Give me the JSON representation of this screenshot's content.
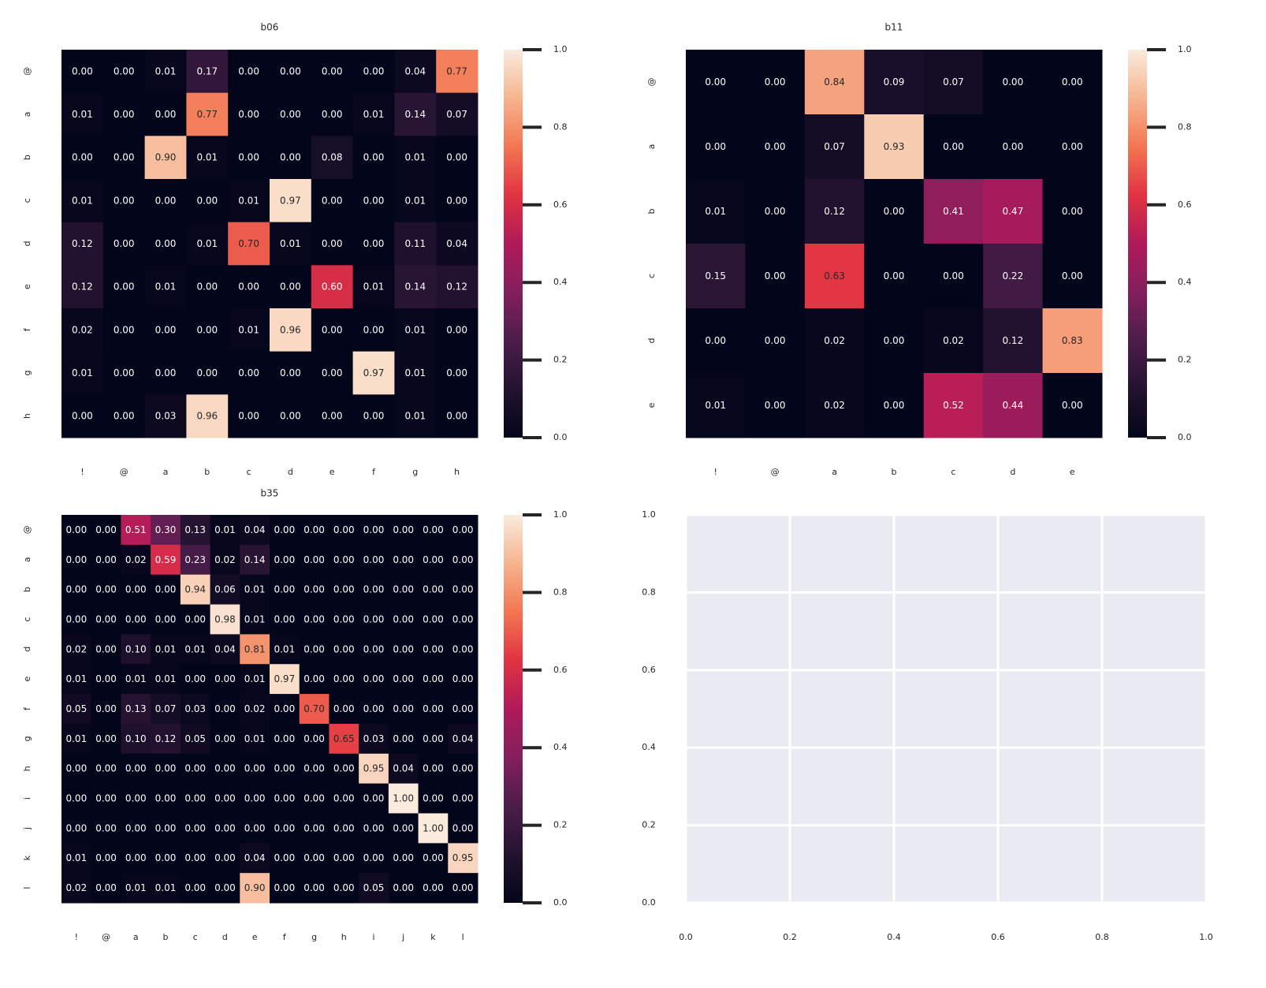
{
  "chart_data": [
    {
      "type": "heatmap",
      "title": "b06",
      "x_categories": [
        "!",
        "@",
        "a",
        "b",
        "c",
        "d",
        "e",
        "f",
        "g",
        "h"
      ],
      "y_categories": [
        "@",
        "a",
        "b",
        "c",
        "d",
        "e",
        "f",
        "g",
        "h"
      ],
      "values": [
        [
          0.0,
          0.0,
          0.01,
          0.17,
          0.0,
          0.0,
          0.0,
          0.0,
          0.04,
          0.77
        ],
        [
          0.01,
          0.0,
          0.0,
          0.77,
          0.0,
          0.0,
          0.0,
          0.01,
          0.14,
          0.07
        ],
        [
          0.0,
          0.0,
          0.9,
          0.01,
          0.0,
          0.0,
          0.08,
          0.0,
          0.01,
          0.0
        ],
        [
          0.01,
          0.0,
          0.0,
          0.0,
          0.01,
          0.97,
          0.0,
          0.0,
          0.01,
          0.0
        ],
        [
          0.12,
          0.0,
          0.0,
          0.01,
          0.7,
          0.01,
          0.0,
          0.0,
          0.11,
          0.04
        ],
        [
          0.12,
          0.0,
          0.01,
          0.0,
          0.0,
          0.0,
          0.6,
          0.01,
          0.14,
          0.12
        ],
        [
          0.02,
          0.0,
          0.0,
          0.0,
          0.01,
          0.96,
          0.0,
          0.0,
          0.01,
          0.0
        ],
        [
          0.01,
          0.0,
          0.0,
          0.0,
          0.0,
          0.0,
          0.0,
          0.97,
          0.01,
          0.0
        ],
        [
          0.0,
          0.0,
          0.03,
          0.96,
          0.0,
          0.0,
          0.0,
          0.0,
          0.01,
          0.0
        ]
      ],
      "colorbar": {
        "range": [
          0.0,
          1.0
        ],
        "ticks": [
          "0.0",
          "0.2",
          "0.4",
          "0.6",
          "0.8",
          "1.0"
        ]
      },
      "colormap": "rocket"
    },
    {
      "type": "heatmap",
      "title": "b11",
      "x_categories": [
        "!",
        "@",
        "a",
        "b",
        "c",
        "d",
        "e"
      ],
      "y_categories": [
        "@",
        "a",
        "b",
        "c",
        "d",
        "e"
      ],
      "values": [
        [
          0.0,
          0.0,
          0.84,
          0.09,
          0.07,
          0.0,
          0.0
        ],
        [
          0.0,
          0.0,
          0.07,
          0.93,
          0.0,
          0.0,
          0.0
        ],
        [
          0.01,
          0.0,
          0.12,
          0.0,
          0.41,
          0.47,
          0.0
        ],
        [
          0.15,
          0.0,
          0.63,
          0.0,
          0.0,
          0.22,
          0.0
        ],
        [
          0.0,
          0.0,
          0.02,
          0.0,
          0.02,
          0.12,
          0.83
        ],
        [
          0.01,
          0.0,
          0.02,
          0.0,
          0.52,
          0.44,
          0.0
        ]
      ],
      "colorbar": {
        "range": [
          0.0,
          1.0
        ],
        "ticks": [
          "0.0",
          "0.2",
          "0.4",
          "0.6",
          "0.8",
          "1.0"
        ]
      },
      "colormap": "rocket"
    },
    {
      "type": "heatmap",
      "title": "b35",
      "x_categories": [
        "!",
        "@",
        "a",
        "b",
        "c",
        "d",
        "e",
        "f",
        "g",
        "h",
        "i",
        "j",
        "k",
        "l"
      ],
      "y_categories": [
        "@",
        "a",
        "b",
        "c",
        "d",
        "e",
        "f",
        "g",
        "h",
        "i",
        "j",
        "k",
        "l"
      ],
      "values": [
        [
          0.0,
          0.0,
          0.51,
          0.3,
          0.13,
          0.01,
          0.04,
          0.0,
          0.0,
          0.0,
          0.0,
          0.0,
          0.0,
          0.0
        ],
        [
          0.0,
          0.0,
          0.02,
          0.59,
          0.23,
          0.02,
          0.14,
          0.0,
          0.0,
          0.0,
          0.0,
          0.0,
          0.0,
          0.0
        ],
        [
          0.0,
          0.0,
          0.0,
          0.0,
          0.94,
          0.06,
          0.01,
          0.0,
          0.0,
          0.0,
          0.0,
          0.0,
          0.0,
          0.0
        ],
        [
          0.0,
          0.0,
          0.0,
          0.0,
          0.0,
          0.98,
          0.01,
          0.0,
          0.0,
          0.0,
          0.0,
          0.0,
          0.0,
          0.0
        ],
        [
          0.02,
          0.0,
          0.1,
          0.01,
          0.01,
          0.04,
          0.81,
          0.01,
          0.0,
          0.0,
          0.0,
          0.0,
          0.0,
          0.0
        ],
        [
          0.01,
          0.0,
          0.01,
          0.01,
          0.0,
          0.0,
          0.01,
          0.97,
          0.0,
          0.0,
          0.0,
          0.0,
          0.0,
          0.0
        ],
        [
          0.05,
          0.0,
          0.13,
          0.07,
          0.03,
          0.0,
          0.02,
          0.0,
          0.7,
          0.0,
          0.0,
          0.0,
          0.0,
          0.0
        ],
        [
          0.01,
          0.0,
          0.1,
          0.12,
          0.05,
          0.0,
          0.01,
          0.0,
          0.0,
          0.65,
          0.03,
          0.0,
          0.0,
          0.04
        ],
        [
          0.0,
          0.0,
          0.0,
          0.0,
          0.0,
          0.0,
          0.0,
          0.0,
          0.0,
          0.0,
          0.95,
          0.04,
          0.0,
          0.0
        ],
        [
          0.0,
          0.0,
          0.0,
          0.0,
          0.0,
          0.0,
          0.0,
          0.0,
          0.0,
          0.0,
          0.0,
          1.0,
          0.0,
          0.0
        ],
        [
          0.0,
          0.0,
          0.0,
          0.0,
          0.0,
          0.0,
          0.0,
          0.0,
          0.0,
          0.0,
          0.0,
          0.0,
          1.0,
          0.0
        ],
        [
          0.01,
          0.0,
          0.0,
          0.0,
          0.0,
          0.0,
          0.04,
          0.0,
          0.0,
          0.0,
          0.0,
          0.0,
          0.0,
          0.95
        ],
        [
          0.02,
          0.0,
          0.01,
          0.01,
          0.0,
          0.0,
          0.9,
          0.0,
          0.0,
          0.0,
          0.05,
          0.0,
          0.0,
          0.0
        ]
      ],
      "colorbar": {
        "range": [
          0.0,
          1.0
        ],
        "ticks": [
          "0.0",
          "0.2",
          "0.4",
          "0.6",
          "0.8",
          "1.0"
        ]
      },
      "colormap": "rocket"
    },
    {
      "type": "empty",
      "title": "",
      "xlim": [
        0.0,
        1.0
      ],
      "ylim": [
        0.0,
        1.0
      ],
      "x_ticks": [
        "0.0",
        "0.2",
        "0.4",
        "0.6",
        "0.8",
        "1.0"
      ],
      "y_ticks": [
        "0.0",
        "0.2",
        "0.4",
        "0.6",
        "0.8",
        "1.0"
      ],
      "grid": true,
      "background": "#eaeaf2"
    }
  ]
}
